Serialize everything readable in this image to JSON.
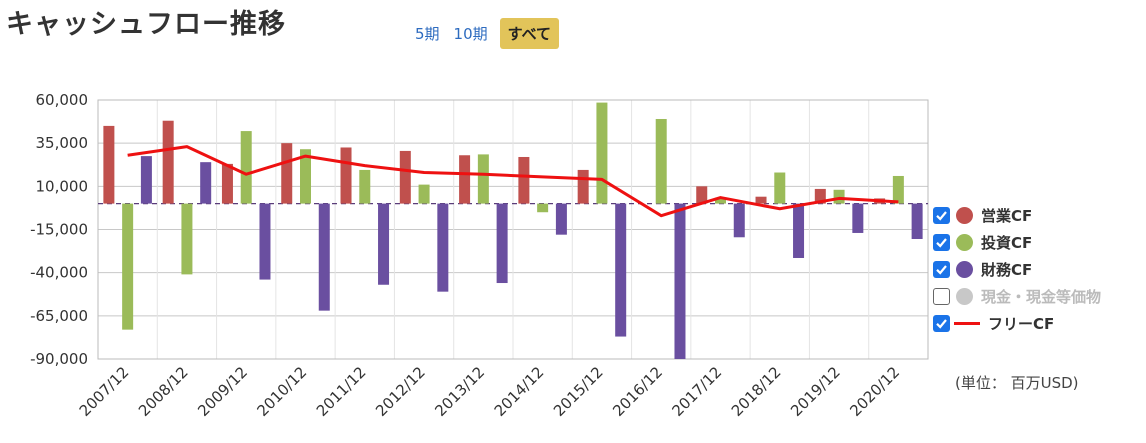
{
  "title": "キャッシュフロー推移",
  "periods": {
    "p5": "5期",
    "p10": "10期",
    "all": "すべて"
  },
  "unit_label": "(単位： 百万USD)",
  "legend": [
    {
      "label": "営業CF",
      "color": "#c0504d",
      "checked": true
    },
    {
      "label": "投資CF",
      "color": "#9bbb59",
      "checked": true
    },
    {
      "label": "財務CF",
      "color": "#6a4fa0",
      "checked": true
    },
    {
      "label": "現金・現金等価物",
      "color": "#c8c8c8",
      "checked": false
    },
    {
      "label": "フリーCF",
      "color": "#ee1111",
      "checked": true,
      "line": true
    }
  ],
  "chart_data": {
    "type": "bar",
    "categories": [
      "2007/12",
      "2008/12",
      "2009/12",
      "2010/12",
      "2011/12",
      "2012/12",
      "2013/12",
      "2014/12",
      "2015/12",
      "2016/12",
      "2017/12",
      "2018/12",
      "2019/12",
      "2020/12"
    ],
    "ylim": [
      -90000,
      60000
    ],
    "yticks": [
      60000,
      35000,
      10000,
      -15000,
      -40000,
      -65000,
      -90000
    ],
    "ytick_labels": [
      "60,000",
      "35,000",
      "10,000",
      "-15,000",
      "-40,000",
      "-65,000",
      "-90,000"
    ],
    "grid": true,
    "series": [
      {
        "name": "営業CF",
        "color": "#c0504d",
        "type": "bar",
        "values": [
          45000,
          48000,
          23000,
          35000,
          32500,
          30500,
          28000,
          27000,
          19500,
          null,
          10000,
          4000,
          8500,
          3000
        ]
      },
      {
        "name": "投資CF",
        "color": "#9bbb59",
        "type": "bar",
        "values": [
          -73000,
          -41000,
          42000,
          31500,
          19500,
          11000,
          28500,
          -5000,
          58500,
          49000,
          3500,
          18000,
          8000,
          16000
        ]
      },
      {
        "name": "財務CF",
        "color": "#6a4fa0",
        "type": "bar",
        "values": [
          27500,
          24000,
          -44000,
          -62000,
          -47000,
          -51000,
          -46000,
          -18000,
          -77000,
          -90000,
          -19500,
          -31500,
          -17000,
          -20500
        ]
      },
      {
        "name": "フリーCF",
        "color": "#ee1111",
        "type": "line",
        "values": [
          28000,
          33000,
          17000,
          27500,
          22000,
          18000,
          17000,
          15500,
          14000,
          -7000,
          3500,
          -3000,
          3000,
          1000
        ]
      }
    ]
  }
}
